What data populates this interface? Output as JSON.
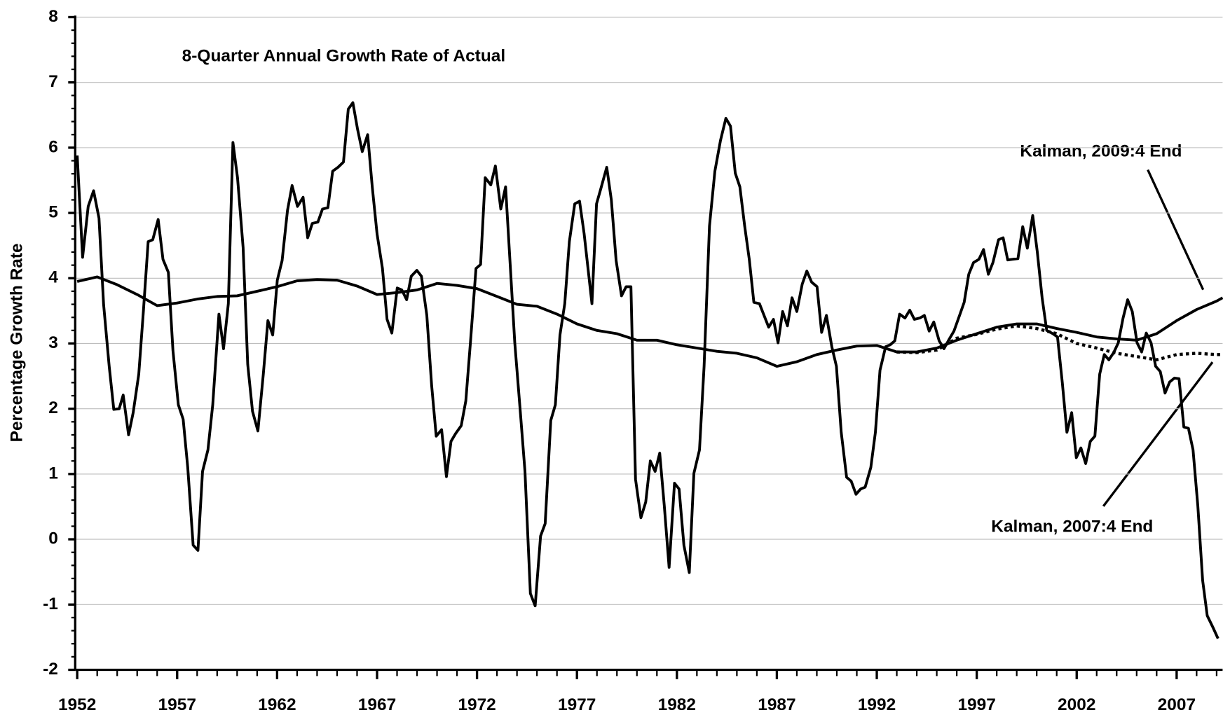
{
  "chart_data": {
    "type": "line",
    "y_label": "Percentage Growth Rate",
    "xlim": [
      1951.9,
      2009.3
    ],
    "xticks": [
      1952,
      1957,
      1962,
      1967,
      1972,
      1977,
      1982,
      1987,
      1992,
      1997,
      2002,
      2007
    ],
    "ylim": [
      -2,
      8
    ],
    "yticks": [
      -2,
      -1,
      0,
      1,
      2,
      3,
      4,
      5,
      6,
      7,
      8
    ],
    "grid": true,
    "series": [
      {
        "name": "8-Quarter Annual Growth Rate of Actual",
        "color": "#000000",
        "style": "solid",
        "x": [
          1952.0,
          1952.27,
          1952.55,
          1952.82,
          1953.09,
          1953.32,
          1953.6,
          1953.83,
          1954.1,
          1954.3,
          1954.57,
          1954.8,
          1955.08,
          1955.31,
          1955.55,
          1955.78,
          1956.05,
          1956.29,
          1956.56,
          1956.79,
          1957.06,
          1957.3,
          1957.53,
          1957.8,
          1958.04,
          1958.27,
          1958.54,
          1958.78,
          1959.09,
          1959.32,
          1959.56,
          1959.79,
          1960.02,
          1960.3,
          1960.53,
          1960.77,
          1961.04,
          1961.31,
          1961.54,
          1961.78,
          1962.01,
          1962.25,
          1962.52,
          1962.75,
          1963.02,
          1963.3,
          1963.53,
          1963.76,
          1964.04,
          1964.27,
          1964.54,
          1964.78,
          1965.05,
          1965.32,
          1965.56,
          1965.79,
          1966.02,
          1966.26,
          1966.53,
          1966.76,
          1967.0,
          1967.27,
          1967.5,
          1967.74,
          1968.01,
          1968.24,
          1968.48,
          1968.71,
          1968.99,
          1969.22,
          1969.49,
          1969.73,
          1969.96,
          1970.23,
          1970.47,
          1970.7,
          1970.93,
          1971.21,
          1971.44,
          1971.67,
          1971.95,
          1972.18,
          1972.41,
          1972.69,
          1972.92,
          1973.19,
          1973.43,
          1973.66,
          1973.89,
          1974.17,
          1974.4,
          1974.67,
          1974.91,
          1975.18,
          1975.41,
          1975.69,
          1975.92,
          1976.15,
          1976.39,
          1976.62,
          1976.89,
          1977.13,
          1977.36,
          1977.75,
          1977.98,
          1978.22,
          1978.49,
          1978.72,
          1978.96,
          1979.23,
          1979.46,
          1979.7,
          1979.93,
          1980.2,
          1980.44,
          1980.67,
          1980.91,
          1981.14,
          1981.37,
          1981.61,
          1981.88,
          1982.11,
          1982.35,
          1982.62,
          1982.85,
          1983.13,
          1983.36,
          1983.63,
          1983.9,
          1984.18,
          1984.45,
          1984.68,
          1984.92,
          1985.15,
          1985.39,
          1985.62,
          1985.85,
          1986.13,
          1986.36,
          1986.59,
          1986.83,
          1987.06,
          1987.29,
          1987.53,
          1987.76,
          1988.0,
          1988.27,
          1988.5,
          1988.74,
          1989.01,
          1989.24,
          1989.48,
          1989.75,
          1989.98,
          1990.22,
          1990.49,
          1990.72,
          1990.96,
          1991.19,
          1991.42,
          1991.7,
          1991.93,
          1992.16,
          1992.44,
          1992.67,
          1992.9,
          1993.14,
          1993.41,
          1993.65,
          1993.88,
          1994.15,
          1994.38,
          1994.62,
          1994.85,
          1995.12,
          1995.36,
          1995.63,
          1995.86,
          1996.14,
          1996.37,
          1996.6,
          1996.84,
          1997.11,
          1997.34,
          1997.58,
          1997.81,
          1998.09,
          1998.32,
          1998.55,
          1998.79,
          1999.06,
          1999.3,
          1999.53,
          1999.8,
          2000.03,
          2000.27,
          2000.5,
          2000.81,
          2001.04,
          2001.28,
          2001.51,
          2001.75,
          2001.98,
          2002.21,
          2002.45,
          2002.68,
          2002.91,
          2003.15,
          2003.38,
          2003.61,
          2003.85,
          2004.08,
          2004.32,
          2004.55,
          2004.78,
          2005.02,
          2005.25,
          2005.48,
          2005.72,
          2005.95,
          2006.18,
          2006.42,
          2006.65,
          2006.89,
          2007.12,
          2007.36,
          2007.59,
          2007.82,
          2008.06,
          2008.3,
          2008.53,
          2008.8,
          2009.07
        ],
        "values": [
          5.88,
          4.32,
          5.1,
          5.34,
          4.92,
          3.6,
          2.65,
          1.99,
          2.0,
          2.21,
          1.6,
          1.94,
          2.53,
          3.49,
          4.56,
          4.59,
          4.9,
          4.29,
          4.09,
          2.89,
          2.06,
          1.84,
          1.1,
          -0.09,
          -0.17,
          1.04,
          1.37,
          2.06,
          3.45,
          2.92,
          3.61,
          6.08,
          5.54,
          4.47,
          2.68,
          1.96,
          1.66,
          2.53,
          3.35,
          3.13,
          3.97,
          4.27,
          5.04,
          5.42,
          5.1,
          5.24,
          4.62,
          4.84,
          4.86,
          5.06,
          5.08,
          5.64,
          5.7,
          5.78,
          6.59,
          6.69,
          6.29,
          5.94,
          6.2,
          5.4,
          4.68,
          4.15,
          3.37,
          3.16,
          3.85,
          3.82,
          3.67,
          4.03,
          4.12,
          4.03,
          3.43,
          2.36,
          1.58,
          1.68,
          0.96,
          1.5,
          1.62,
          1.74,
          2.12,
          3.01,
          4.15,
          4.21,
          5.54,
          5.43,
          5.72,
          5.06,
          5.4,
          4.21,
          3.01,
          1.94,
          1.04,
          -0.83,
          -1.02,
          0.05,
          0.24,
          1.82,
          2.06,
          3.13,
          3.61,
          4.56,
          5.14,
          5.18,
          4.68,
          3.61,
          5.14,
          5.4,
          5.7,
          5.2,
          4.27,
          3.73,
          3.87,
          3.87,
          0.92,
          0.33,
          0.57,
          1.2,
          1.04,
          1.32,
          0.51,
          -0.43,
          0.86,
          0.77,
          -0.09,
          -0.51,
          1.01,
          1.37,
          2.65,
          4.8,
          5.64,
          6.11,
          6.45,
          6.33,
          5.61,
          5.4,
          4.8,
          4.29,
          3.63,
          3.61,
          3.43,
          3.25,
          3.37,
          3.01,
          3.49,
          3.27,
          3.7,
          3.49,
          3.91,
          4.11,
          3.94,
          3.87,
          3.17,
          3.43,
          2.95,
          2.65,
          1.64,
          0.95,
          0.89,
          0.69,
          0.77,
          0.8,
          1.1,
          1.64,
          2.59,
          2.95,
          2.98,
          3.04,
          3.45,
          3.39,
          3.51,
          3.37,
          3.39,
          3.43,
          3.19,
          3.33,
          3.04,
          2.92,
          3.07,
          3.19,
          3.43,
          3.63,
          4.06,
          4.24,
          4.29,
          4.44,
          4.06,
          4.24,
          4.59,
          4.62,
          4.28,
          4.29,
          4.3,
          4.79,
          4.46,
          4.96,
          4.4,
          3.7,
          3.2,
          3.15,
          3.1,
          2.4,
          1.64,
          1.94,
          1.25,
          1.4,
          1.16,
          1.5,
          1.58,
          2.53,
          2.83,
          2.75,
          2.86,
          3.01,
          3.39,
          3.67,
          3.49,
          3.01,
          2.87,
          3.16,
          3.01,
          2.65,
          2.57,
          2.24,
          2.41,
          2.47,
          2.46,
          1.72,
          1.7,
          1.37,
          0.51,
          -0.63,
          -1.17,
          -1.34,
          -1.52
        ]
      },
      {
        "name": "Kalman, 2009:4 End",
        "color": "#000000",
        "style": "solid",
        "x": [
          1952,
          1953,
          1954,
          1955,
          1956,
          1957,
          1958,
          1959,
          1960,
          1961,
          1962,
          1963,
          1964,
          1965,
          1966,
          1967,
          1968,
          1969,
          1970,
          1971,
          1972,
          1973,
          1974,
          1975,
          1976,
          1977,
          1978,
          1979,
          1980,
          1981,
          1982,
          1983,
          1984,
          1985,
          1986,
          1987,
          1988,
          1989,
          1990,
          1991,
          1992,
          1993,
          1994,
          1995,
          1996,
          1997,
          1998,
          1999,
          2000,
          2001,
          2002,
          2003,
          2004,
          2005,
          2006,
          2007,
          2008,
          2009,
          2009.3
        ],
        "values": [
          3.95,
          4.02,
          3.9,
          3.75,
          3.58,
          3.62,
          3.68,
          3.72,
          3.73,
          3.8,
          3.87,
          3.96,
          3.98,
          3.97,
          3.88,
          3.75,
          3.78,
          3.82,
          3.92,
          3.89,
          3.84,
          3.72,
          3.6,
          3.57,
          3.45,
          3.3,
          3.2,
          3.15,
          3.05,
          3.05,
          2.98,
          2.93,
          2.88,
          2.85,
          2.78,
          2.65,
          2.72,
          2.83,
          2.9,
          2.96,
          2.97,
          2.87,
          2.87,
          2.93,
          3.05,
          3.15,
          3.25,
          3.3,
          3.3,
          3.23,
          3.17,
          3.1,
          3.07,
          3.05,
          3.15,
          3.35,
          3.52,
          3.65,
          3.7
        ]
      },
      {
        "name": "Kalman, 2007:4 End",
        "color": "#000000",
        "style": "dotted",
        "x": [
          1993,
          1994,
          1995,
          1996,
          1997,
          1998,
          1999,
          2000,
          2001,
          2002,
          2003,
          2004,
          2005,
          2006,
          2007,
          2008,
          2009,
          2009.3
        ],
        "values": [
          2.87,
          2.86,
          2.9,
          3.08,
          3.14,
          3.22,
          3.27,
          3.23,
          3.15,
          3.0,
          2.93,
          2.85,
          2.8,
          2.75,
          2.83,
          2.85,
          2.83,
          2.83
        ]
      }
    ]
  }
}
